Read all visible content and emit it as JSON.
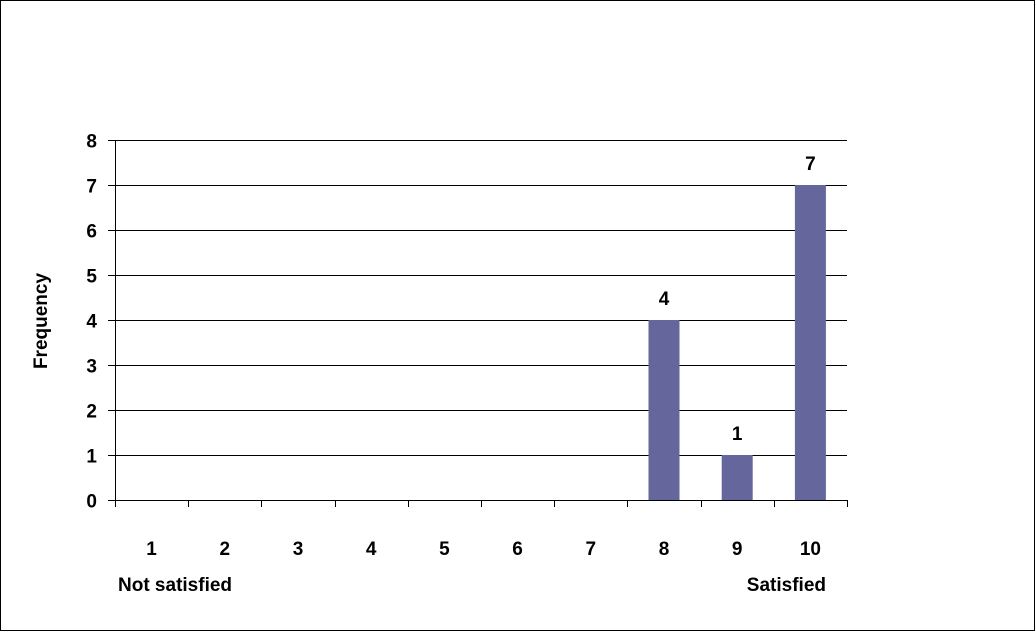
{
  "chart_data": {
    "type": "bar",
    "categories": [
      "1",
      "2",
      "3",
      "4",
      "5",
      "6",
      "7",
      "8",
      "9",
      "10"
    ],
    "values": [
      0,
      0,
      0,
      0,
      0,
      0,
      0,
      4,
      1,
      7
    ],
    "data_labels": [
      "",
      "",
      "",
      "",
      "",
      "",
      "",
      "4",
      "1",
      "7"
    ],
    "title": "",
    "xlabel": "",
    "ylabel": "Frequency",
    "ylim": [
      0,
      8
    ],
    "yticks": [
      0,
      1,
      2,
      3,
      4,
      5,
      6,
      7,
      8
    ],
    "grid": "horizontal",
    "legend": "none",
    "bar_color": "#65669c",
    "x_end_labels": {
      "left": "Not satisfied",
      "right": "Satisfied"
    }
  }
}
